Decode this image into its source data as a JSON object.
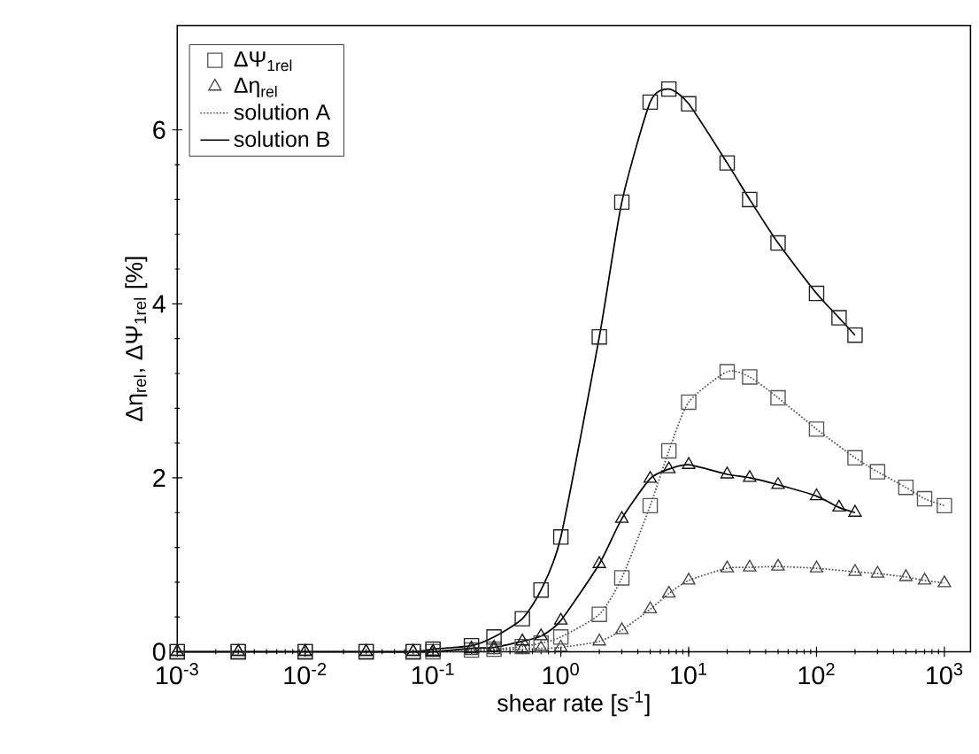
{
  "chart_data": {
    "type": "scatter",
    "xlabel": "shear rate  [s$^{-1}$]",
    "ylabel": "Δη$_{rel}$, ΔΨ$_{1rel}$ [%]",
    "log": "x",
    "xlim": [
      0.001,
      1600
    ],
    "ylim": [
      0,
      7.2
    ],
    "xticks": [
      {
        "value": 0.001,
        "label": "10$^{-3}$"
      },
      {
        "value": 0.01,
        "label": "10$^{-2}$"
      },
      {
        "value": 0.1,
        "label": "10$^{-1}$"
      },
      {
        "value": 1,
        "label": "10$^{0}$"
      },
      {
        "value": 10,
        "label": "10$^{1}$"
      },
      {
        "value": 100,
        "label": "10$^{2}$"
      },
      {
        "value": 1000,
        "label": "10$^{3}$"
      }
    ],
    "yticks": [
      0,
      2,
      4,
      6
    ],
    "legend": "top left",
    "series": [
      {
        "name": "ΔΨ$_{1rel}$",
        "marker": "square",
        "color": "#555555",
        "x": [
          0.001,
          0.003,
          0.01,
          0.03,
          0.07,
          0.1,
          0.2,
          0.3,
          0.5,
          0.7,
          1,
          2,
          3,
          5,
          7,
          10,
          20,
          30,
          50,
          100,
          200,
          300,
          500,
          700,
          1000
        ],
        "values": [
          0,
          0,
          0,
          0,
          0,
          0,
          0.02,
          0.03,
          0.06,
          0.1,
          0.17,
          0.43,
          0.85,
          1.68,
          2.31,
          2.87,
          3.22,
          3.16,
          2.92,
          2.56,
          2.23,
          2.07,
          1.89,
          1.76,
          1.68
        ]
      },
      {
        "name": "Δη$_{rel}$",
        "marker": "triangle",
        "color": "#444444",
        "x": [
          0.001,
          0.003,
          0.01,
          0.03,
          0.07,
          0.1,
          0.2,
          0.3,
          0.5,
          0.7,
          1,
          2,
          3,
          5,
          7,
          10,
          20,
          30,
          50,
          100,
          200,
          300,
          500,
          700,
          1000
        ],
        "values": [
          0,
          0,
          0,
          0,
          0,
          0,
          0.01,
          0.02,
          0.03,
          0.04,
          0.05,
          0.12,
          0.25,
          0.49,
          0.67,
          0.82,
          0.96,
          0.97,
          0.98,
          0.96,
          0.92,
          0.9,
          0.86,
          0.82,
          0.79
        ]
      },
      {
        "name": "solution A",
        "type": "line",
        "line_style": "dotted",
        "color": "#555555",
        "x": [
          0.001,
          0.003,
          0.01,
          0.03,
          0.07,
          0.1,
          0.2,
          0.3,
          0.5,
          0.7,
          1,
          2,
          3,
          5,
          7,
          10,
          20,
          30,
          50,
          100,
          200,
          300,
          500,
          700,
          1000
        ],
        "values": [
          0,
          0,
          0,
          0,
          0,
          0,
          0.02,
          0.03,
          0.06,
          0.1,
          0.17,
          0.43,
          0.85,
          1.68,
          2.31,
          2.87,
          3.22,
          3.16,
          2.92,
          2.56,
          2.23,
          2.07,
          1.89,
          1.76,
          1.68
        ]
      },
      {
        "name": "solution B",
        "type": "line",
        "line_style": "solid",
        "color": "#000000",
        "x": [
          0.001,
          0.003,
          0.01,
          0.03,
          0.07,
          0.1,
          0.2,
          0.3,
          0.5,
          0.7,
          1,
          2,
          3,
          5,
          7,
          10,
          20,
          30,
          50,
          100,
          150,
          200
        ],
        "values": [
          0,
          0,
          0,
          0,
          0,
          0.03,
          0.07,
          0.17,
          0.38,
          0.71,
          1.32,
          3.62,
          5.17,
          6.32,
          6.47,
          6.3,
          5.62,
          5.2,
          4.7,
          4.12,
          3.84,
          3.64
        ]
      },
      {
        "marker": "square",
        "color": "#222222",
        "x": [
          0.001,
          0.003,
          0.01,
          0.03,
          0.07,
          0.1,
          0.2,
          0.3,
          0.5,
          0.7,
          1,
          2,
          3,
          5,
          7,
          10,
          20,
          30,
          50,
          100,
          150,
          200
        ],
        "values": [
          0,
          0,
          0,
          0,
          0,
          0.03,
          0.07,
          0.17,
          0.38,
          0.71,
          1.32,
          3.62,
          5.17,
          6.32,
          6.47,
          6.3,
          5.62,
          5.2,
          4.7,
          4.12,
          3.84,
          3.64
        ]
      },
      {
        "marker": "triangle",
        "color": "#111111",
        "x": [
          0.001,
          0.003,
          0.01,
          0.03,
          0.07,
          0.1,
          0.2,
          0.3,
          0.5,
          0.7,
          1,
          2,
          3,
          5,
          7,
          10,
          20,
          30,
          50,
          100,
          150,
          200
        ],
        "values": [
          0,
          0,
          0,
          0,
          0,
          0,
          0.04,
          0.05,
          0.12,
          0.18,
          0.36,
          1.01,
          1.53,
          1.99,
          2.1,
          2.15,
          2.04,
          2.0,
          1.92,
          1.79,
          1.66,
          1.6
        ]
      },
      {
        "type": "line",
        "line_style": "dotted",
        "color": "#555555",
        "x": [
          0.001,
          0.003,
          0.01,
          0.03,
          0.07,
          0.1,
          0.2,
          0.3,
          0.5,
          0.7,
          1,
          2,
          3,
          5,
          7,
          10,
          20,
          30,
          50,
          100,
          200,
          300,
          500,
          700,
          1000
        ],
        "values": [
          0,
          0,
          0,
          0,
          0,
          0,
          0.01,
          0.02,
          0.03,
          0.04,
          0.05,
          0.12,
          0.25,
          0.49,
          0.67,
          0.82,
          0.96,
          0.97,
          0.98,
          0.96,
          0.92,
          0.9,
          0.86,
          0.82,
          0.79
        ]
      },
      {
        "type": "line",
        "line_style": "solid",
        "color": "#000000",
        "x": [
          0.001,
          0.003,
          0.01,
          0.03,
          0.07,
          0.1,
          0.2,
          0.3,
          0.5,
          0.7,
          1,
          2,
          3,
          5,
          7,
          10,
          20,
          30,
          50,
          100,
          150,
          200
        ],
        "values": [
          0,
          0,
          0,
          0,
          0,
          0,
          0.04,
          0.05,
          0.12,
          0.18,
          0.36,
          1.01,
          1.53,
          1.99,
          2.1,
          2.15,
          2.04,
          2.0,
          1.92,
          1.79,
          1.66,
          1.6
        ]
      }
    ]
  }
}
